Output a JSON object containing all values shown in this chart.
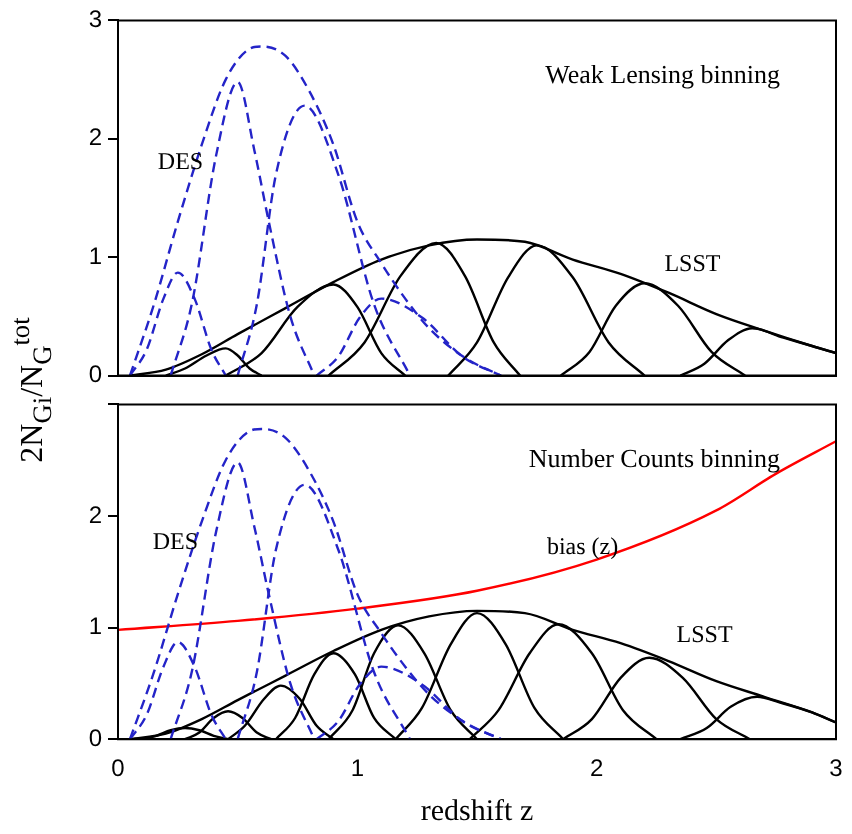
{
  "chart_data": [
    {
      "type": "line",
      "title": "Weak Lensing binning",
      "ylabel": "2N$_{Gi}$/N$_{G}$$^{tot}$",
      "xlim": [
        0,
        3
      ],
      "xticks": [
        0,
        1,
        2,
        3
      ],
      "ylim": [
        0,
        3
      ],
      "yticks": [
        0,
        1,
        2,
        3
      ],
      "tick_labels": "y",
      "marker": "none",
      "series": [
        {
          "name": "DES",
          "color": "#2424c8",
          "line_style": "dashed",
          "x": [
            0.05,
            0.15,
            0.25,
            0.35,
            0.45,
            0.55,
            0.6,
            0.7,
            0.8,
            0.9,
            1.0,
            1.1,
            1.2,
            1.3,
            1.45,
            1.6
          ],
          "values": [
            0,
            0.6,
            1.3,
            1.95,
            2.5,
            2.76,
            2.78,
            2.7,
            2.4,
            1.95,
            1.3,
            0.95,
            0.65,
            0.4,
            0.15,
            0
          ]
        },
        {
          "color": "#2424c8",
          "line_style": "dashed",
          "x": [
            0.05,
            0.12,
            0.19,
            0.25,
            0.32,
            0.39,
            0.45
          ],
          "values": [
            0,
            0.22,
            0.65,
            0.87,
            0.65,
            0.22,
            0
          ]
        },
        {
          "color": "#2424c8",
          "line_style": "dashed",
          "x": [
            0.22,
            0.31,
            0.41,
            0.5,
            0.57,
            0.63,
            0.72,
            0.82
          ],
          "values": [
            0,
            0.62,
            1.86,
            2.48,
            1.9,
            1.3,
            0.5,
            0
          ]
        },
        {
          "color": "#2424c8",
          "line_style": "dashed",
          "x": [
            0.5,
            0.58,
            0.66,
            0.78,
            0.92,
            1.07,
            1.22
          ],
          "values": [
            0,
            0.6,
            1.7,
            2.28,
            1.7,
            0.6,
            0
          ]
        },
        {
          "color": "#2424c8",
          "line_style": "dashed",
          "x": [
            0.83,
            0.92,
            1.01,
            1.1,
            1.27,
            1.44,
            1.6
          ],
          "values": [
            0,
            0.16,
            0.49,
            0.65,
            0.49,
            0.16,
            0
          ]
        },
        {
          "name": "LSST",
          "color": "#000000",
          "line_style": "solid",
          "x": [
            0.05,
            0.2,
            0.35,
            0.5,
            0.7,
            0.9,
            1.1,
            1.3,
            1.5,
            1.7,
            1.9,
            2.1,
            2.3,
            2.5,
            2.7,
            2.9,
            3.0
          ],
          "values": [
            0,
            0.05,
            0.18,
            0.35,
            0.57,
            0.79,
            0.98,
            1.1,
            1.15,
            1.13,
            0.98,
            0.86,
            0.7,
            0.52,
            0.38,
            0.25,
            0.19
          ]
        },
        {
          "color": "#000000",
          "line_style": "solid",
          "x": [
            0.2,
            0.28,
            0.37,
            0.45,
            0.5,
            0.55,
            0.6
          ],
          "values": [
            0,
            0.06,
            0.17,
            0.23,
            0.17,
            0.06,
            0
          ]
        },
        {
          "color": "#000000",
          "line_style": "solid",
          "x": [
            0.45,
            0.6,
            0.75,
            0.9,
            1.0,
            1.1,
            1.2
          ],
          "values": [
            0,
            0.19,
            0.58,
            0.77,
            0.58,
            0.19,
            0
          ]
        },
        {
          "color": "#000000",
          "line_style": "solid",
          "x": [
            0.88,
            1.03,
            1.18,
            1.33,
            1.45,
            1.57,
            1.68
          ],
          "values": [
            0,
            0.28,
            0.84,
            1.12,
            0.84,
            0.28,
            0
          ]
        },
        {
          "color": "#000000",
          "line_style": "solid",
          "x": [
            1.38,
            1.5,
            1.63,
            1.75,
            1.9,
            2.05,
            2.2
          ],
          "values": [
            0,
            0.28,
            0.83,
            1.1,
            0.83,
            0.28,
            0
          ]
        },
        {
          "color": "#000000",
          "line_style": "solid",
          "x": [
            1.85,
            1.97,
            2.08,
            2.2,
            2.34,
            2.48,
            2.62
          ],
          "values": [
            0,
            0.2,
            0.59,
            0.78,
            0.59,
            0.2,
            0
          ]
        },
        {
          "color": "#000000",
          "line_style": "solid",
          "x": [
            2.35,
            2.45,
            2.55,
            2.65,
            2.78,
            2.9,
            3.0
          ],
          "values": [
            0,
            0.1,
            0.3,
            0.4,
            0.32,
            0.25,
            0.19
          ]
        }
      ]
    },
    {
      "type": "line",
      "title": "Number Counts binning",
      "xlabel": "redshift z",
      "xlim": [
        0,
        3
      ],
      "xticks": [
        0,
        1,
        2,
        3
      ],
      "ylim": [
        0,
        3
      ],
      "yticks": [
        0,
        1,
        2,
        {
          "value": 3,
          "label": null
        }
      ],
      "marker": "none",
      "series": [
        {
          "name": "DES",
          "color": "#2424c8",
          "line_style": "dashed",
          "x": [
            0.05,
            0.15,
            0.25,
            0.35,
            0.45,
            0.55,
            0.6,
            0.7,
            0.8,
            0.9,
            1.0,
            1.1,
            1.2,
            1.3,
            1.45,
            1.6
          ],
          "values": [
            0,
            0.6,
            1.3,
            1.95,
            2.5,
            2.76,
            2.78,
            2.7,
            2.4,
            1.95,
            1.3,
            0.95,
            0.65,
            0.4,
            0.15,
            0
          ]
        },
        {
          "color": "#2424c8",
          "line_style": "dashed",
          "x": [
            0.05,
            0.12,
            0.19,
            0.25,
            0.32,
            0.39,
            0.45
          ],
          "values": [
            0,
            0.22,
            0.65,
            0.87,
            0.65,
            0.22,
            0
          ]
        },
        {
          "color": "#2424c8",
          "line_style": "dashed",
          "x": [
            0.22,
            0.31,
            0.41,
            0.5,
            0.57,
            0.63,
            0.72,
            0.82
          ],
          "values": [
            0,
            0.62,
            1.86,
            2.48,
            1.9,
            1.3,
            0.5,
            0
          ]
        },
        {
          "color": "#2424c8",
          "line_style": "dashed",
          "x": [
            0.5,
            0.58,
            0.66,
            0.78,
            0.92,
            1.07,
            1.22
          ],
          "values": [
            0,
            0.6,
            1.7,
            2.28,
            1.7,
            0.6,
            0
          ]
        },
        {
          "color": "#2424c8",
          "line_style": "dashed",
          "x": [
            0.83,
            0.92,
            1.01,
            1.1,
            1.27,
            1.44,
            1.6
          ],
          "values": [
            0,
            0.16,
            0.49,
            0.65,
            0.49,
            0.16,
            0
          ]
        },
        {
          "name": "bias (z)",
          "color": "#ff0000",
          "line_style": "solid",
          "x": [
            0,
            0.5,
            1,
            1.5,
            2,
            2.5,
            2.75,
            3
          ],
          "values": [
            0.98,
            1.06,
            1.17,
            1.33,
            1.61,
            2.05,
            2.38,
            2.67
          ]
        },
        {
          "name": "LSST",
          "color": "#000000",
          "line_style": "solid",
          "x": [
            0.05,
            0.2,
            0.35,
            0.5,
            0.7,
            0.9,
            1.1,
            1.3,
            1.5,
            1.7,
            1.9,
            2.1,
            2.3,
            2.5,
            2.7,
            2.9,
            3.0
          ],
          "values": [
            0,
            0.05,
            0.18,
            0.35,
            0.57,
            0.79,
            0.98,
            1.1,
            1.15,
            1.13,
            0.98,
            0.86,
            0.7,
            0.52,
            0.38,
            0.24,
            0.15
          ]
        },
        {
          "color": "#000000",
          "line_style": "solid",
          "x": [
            0.1,
            0.16,
            0.22,
            0.28,
            0.34,
            0.4,
            0.46
          ],
          "values": [
            0,
            0.03,
            0.08,
            0.1,
            0.08,
            0.03,
            0
          ]
        },
        {
          "color": "#000000",
          "line_style": "solid",
          "x": [
            0.28,
            0.34,
            0.4,
            0.46,
            0.52,
            0.58,
            0.64
          ],
          "values": [
            0,
            0.06,
            0.19,
            0.25,
            0.19,
            0.06,
            0
          ]
        },
        {
          "color": "#000000",
          "line_style": "solid",
          "x": [
            0.46,
            0.53,
            0.61,
            0.68,
            0.76,
            0.83,
            0.9
          ],
          "values": [
            0,
            0.12,
            0.36,
            0.48,
            0.36,
            0.12,
            0
          ]
        },
        {
          "color": "#000000",
          "line_style": "solid",
          "x": [
            0.66,
            0.74,
            0.82,
            0.9,
            0.99,
            1.07,
            1.16
          ],
          "values": [
            0,
            0.19,
            0.58,
            0.77,
            0.58,
            0.19,
            0
          ]
        },
        {
          "color": "#000000",
          "line_style": "solid",
          "x": [
            0.88,
            0.98,
            1.07,
            1.17,
            1.28,
            1.39,
            1.5
          ],
          "values": [
            0,
            0.26,
            0.77,
            1.02,
            0.77,
            0.26,
            0
          ]
        },
        {
          "color": "#000000",
          "line_style": "solid",
          "x": [
            1.16,
            1.27,
            1.39,
            1.5,
            1.62,
            1.74,
            1.86
          ],
          "values": [
            0,
            0.28,
            0.85,
            1.13,
            0.85,
            0.28,
            0
          ]
        },
        {
          "color": "#000000",
          "line_style": "solid",
          "x": [
            1.47,
            1.59,
            1.72,
            1.84,
            1.98,
            2.11,
            2.25
          ],
          "values": [
            0,
            0.26,
            0.77,
            1.03,
            0.77,
            0.26,
            0
          ]
        },
        {
          "color": "#000000",
          "line_style": "solid",
          "x": [
            1.86,
            1.98,
            2.1,
            2.22,
            2.36,
            2.5,
            2.64
          ],
          "values": [
            0,
            0.18,
            0.55,
            0.73,
            0.55,
            0.18,
            0
          ]
        },
        {
          "color": "#000000",
          "line_style": "solid",
          "x": [
            2.35,
            2.46,
            2.56,
            2.67,
            2.78,
            2.9,
            3.0
          ],
          "values": [
            0,
            0.1,
            0.29,
            0.38,
            0.32,
            0.24,
            0.15
          ]
        }
      ]
    }
  ]
}
